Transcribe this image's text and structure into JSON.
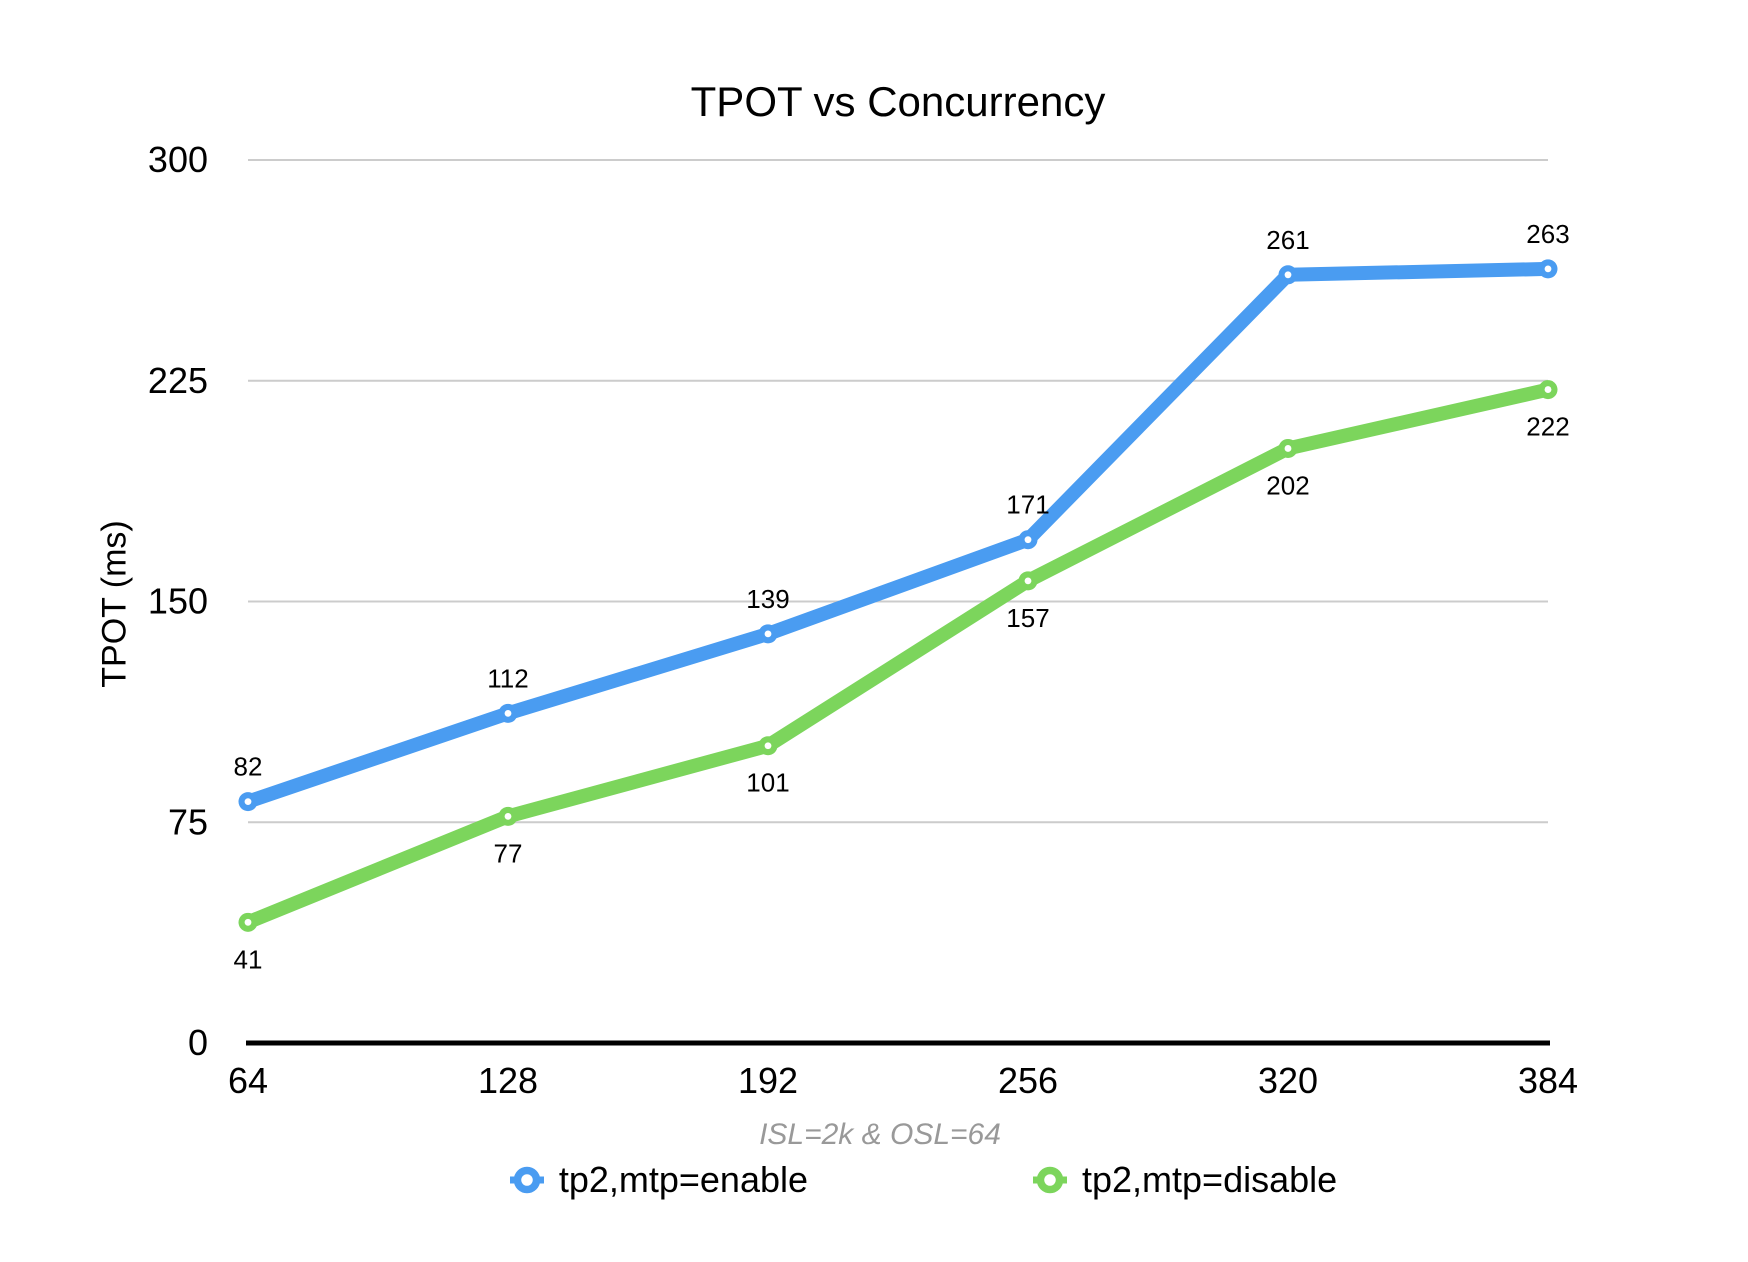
{
  "chart_data": {
    "type": "line",
    "title": "TPOT vs Concurrency",
    "ylabel": "TPOT (ms)",
    "xlabel": "",
    "note": "ISL=2k & OSL=64",
    "categories": [
      64,
      128,
      192,
      256,
      320,
      384
    ],
    "series": [
      {
        "name": "tp2,mtp=enable",
        "color": "#4A9CF1",
        "values": [
          82,
          112,
          139,
          171,
          261,
          263
        ],
        "label_position": "above"
      },
      {
        "name": "tp2,mtp=disable",
        "color": "#7CD55C",
        "values": [
          41,
          77,
          101,
          157,
          202,
          222
        ],
        "label_position": "below"
      }
    ],
    "y_ticks": [
      0,
      75,
      150,
      225,
      300
    ],
    "ylim": [
      0,
      300
    ],
    "grid": true,
    "gridline_color": "#CCCCCC",
    "axis_color": "#000000",
    "data_labels": true,
    "legend_position": "bottom",
    "marker_style": "open-circle"
  }
}
